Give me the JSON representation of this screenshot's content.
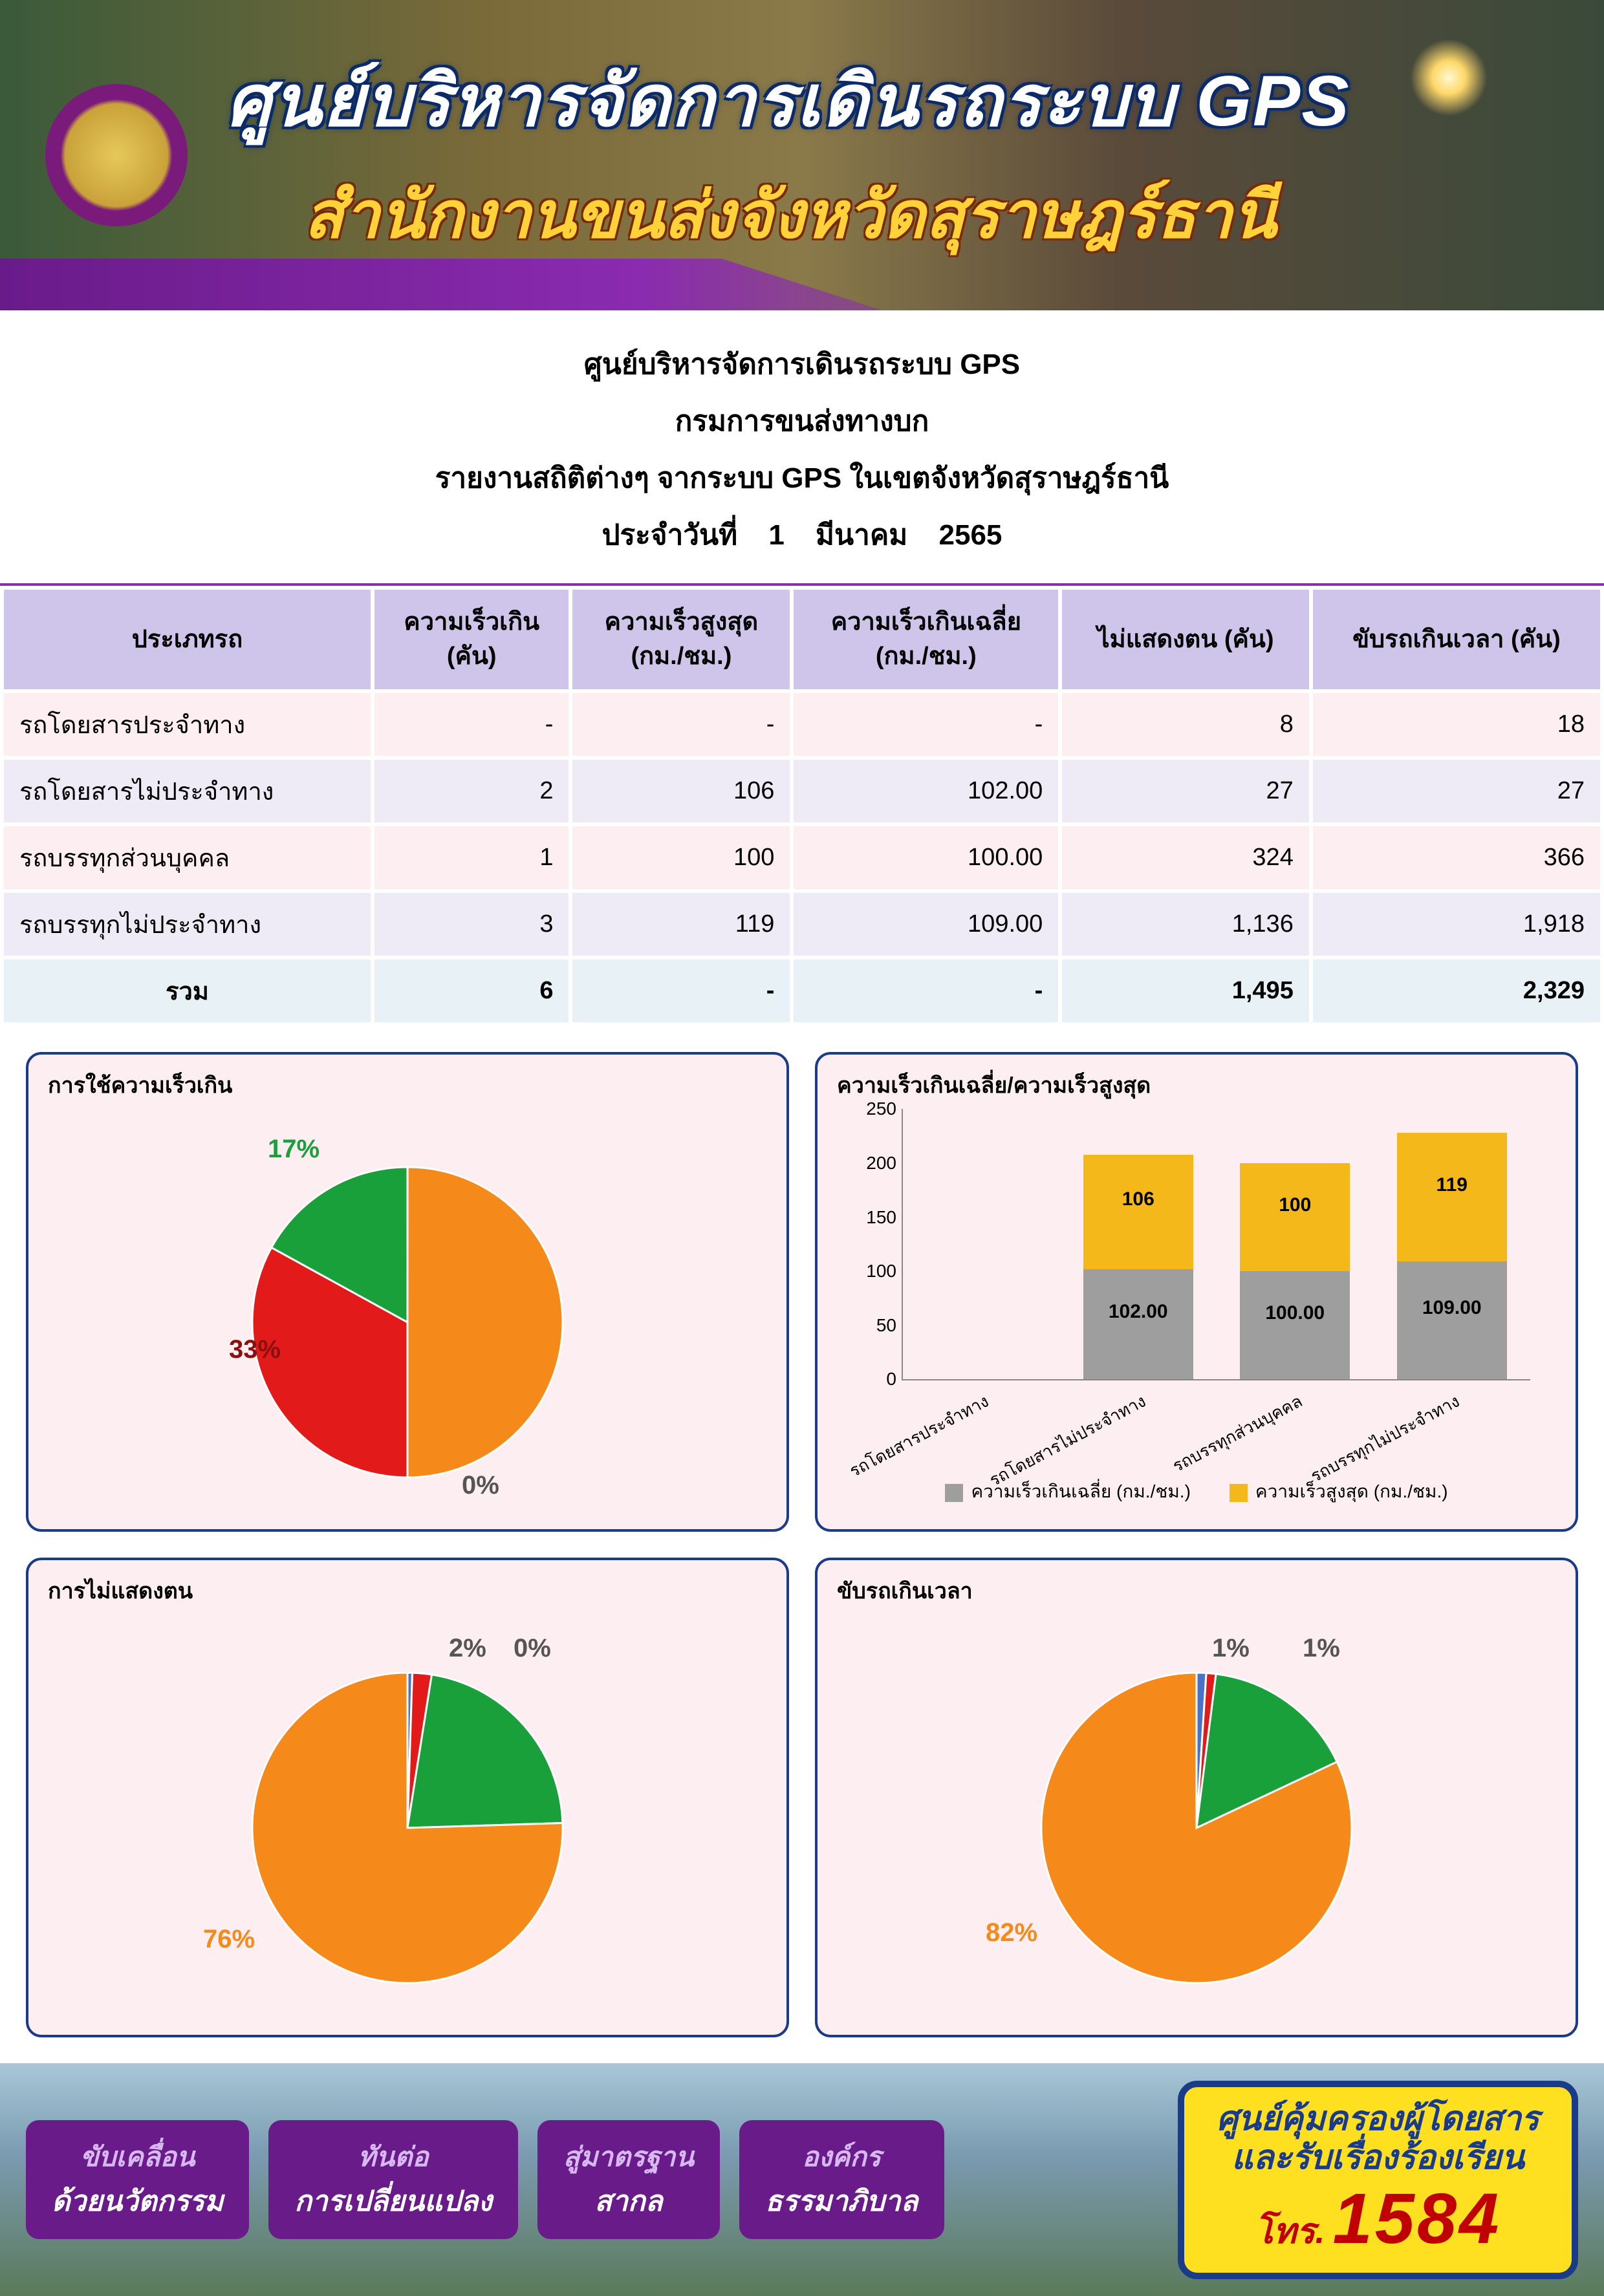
{
  "banner": {
    "title1": "ศูนย์บริหารจัดการเดินรถระบบ GPS",
    "title2": "สำนักงานขนส่งจังหวัดสุราษฎร์ธานี"
  },
  "subheader": {
    "line1": "ศูนย์บริหารจัดการเดินรถระบบ GPS",
    "line2": "กรมการขนส่งทางบก",
    "line3": "รายงานสถิติต่างๆ จากระบบ GPS ในเขตจังหวัดสุราษฎร์ธานี",
    "date_prefix": "ประจำวันที่",
    "date_day": "1",
    "date_month": "มีนาคม",
    "date_year": "2565"
  },
  "table": {
    "headers": [
      "ประเภทรถ",
      "ความเร็วเกิน\n(คัน)",
      "ความเร็วสูงสุด\n(กม./ชม.)",
      "ความเร็วเกินเฉลี่ย\n(กม./ชม.)",
      "ไม่แสดงตน (คัน)",
      "ขับรถเกินเวลา (คัน)"
    ],
    "rows": [
      {
        "class": "row-pink",
        "cells": [
          "รถโดยสารประจำทาง",
          "-",
          "-",
          "-",
          "8",
          "18"
        ]
      },
      {
        "class": "row-lav",
        "cells": [
          "รถโดยสารไม่ประจำทาง",
          "2",
          "106",
          "102.00",
          "27",
          "27"
        ]
      },
      {
        "class": "row-pink",
        "cells": [
          "รถบรรทุกส่วนบุคคล",
          "1",
          "100",
          "100.00",
          "324",
          "366"
        ]
      },
      {
        "class": "row-lav",
        "cells": [
          "รถบรรทุกไม่ประจำทาง",
          "3",
          "119",
          "109.00",
          "1,136",
          "1,918"
        ]
      }
    ],
    "total": [
      "รวม",
      "6",
      "-",
      "-",
      "1,495",
      "2,329"
    ]
  },
  "colors": {
    "blue": "#4a72c8",
    "red": "#e21a1a",
    "green": "#1aa03a",
    "orange": "#f58a1a",
    "grey": "#9e9e9e",
    "yellow": "#f5b81a",
    "box_bg": "#fdeef1",
    "box_border": "#1a3a8a"
  },
  "pie_speed": {
    "title": "การใช้ความเร็วเกิน",
    "slices": [
      {
        "label": "0%",
        "value": 0,
        "color": "#4a72c8"
      },
      {
        "label": "33%",
        "value": 33,
        "color": "#e21a1a"
      },
      {
        "label": "17%",
        "value": 17,
        "color": "#1aa03a"
      },
      {
        "label": "50%",
        "value": 50,
        "color": "#f58a1a"
      }
    ]
  },
  "bar_chart": {
    "title": "ความเร็วเกินเฉลี่ย/ความเร็วสูงสุด",
    "y_max": 250,
    "y_ticks": [
      0,
      50,
      100,
      150,
      200,
      250
    ],
    "categories": [
      "รถโดยสารประจำทาง",
      "รถโดยสารไม่ประจำทาง",
      "รถบรรทุกส่วนบุคคล",
      "รถบรรทุกไม่ประจำทาง"
    ],
    "series": [
      {
        "name": "ความเร็วเกินเฉลี่ย (กม./ชม.)",
        "color": "#9e9e9e",
        "values": [
          "",
          "102.00",
          "100.00",
          "109.00"
        ],
        "num": [
          0,
          102,
          100,
          109
        ]
      },
      {
        "name": "ความเร็วสูงสุด (กม./ชม.)",
        "color": "#f5b81a",
        "values": [
          "",
          "106",
          "100",
          "119"
        ],
        "num": [
          0,
          106,
          100,
          119
        ]
      }
    ]
  },
  "pie_noshow": {
    "title": "การไม่แสดงตน",
    "slices": [
      {
        "label": "0%",
        "value": 0.5,
        "color": "#4a72c8"
      },
      {
        "label": "2%",
        "value": 2,
        "color": "#e21a1a"
      },
      {
        "label": "22%",
        "value": 22,
        "color": "#1aa03a"
      },
      {
        "label": "76%",
        "value": 75.5,
        "color": "#f58a1a"
      }
    ]
  },
  "pie_overtime": {
    "title": "ขับรถเกินเวลา",
    "slices": [
      {
        "label": "1%",
        "value": 1,
        "color": "#4a72c8"
      },
      {
        "label": "1%",
        "value": 1,
        "color": "#e21a1a"
      },
      {
        "label": "16%",
        "value": 16,
        "color": "#1aa03a"
      },
      {
        "label": "82%",
        "value": 82,
        "color": "#f58a1a"
      }
    ]
  },
  "footer": {
    "tags": [
      {
        "top": "ขับเคลื่อน",
        "bot": "ด้วยนวัตกรรม"
      },
      {
        "top": "ทันต่อ",
        "bot": "การเปลี่ยนแปลง"
      },
      {
        "top": "สู่มาตรฐาน",
        "bot": "สากล"
      },
      {
        "top": "องค์กร",
        "bot": "ธรรมาภิบาล"
      }
    ],
    "hotline_l1": "ศูนย์คุ้มครองผู้โดยสาร",
    "hotline_l2": "และรับเรื่องร้องเรียน",
    "hotline_pre": "โทร.",
    "hotline_num": "1584"
  }
}
